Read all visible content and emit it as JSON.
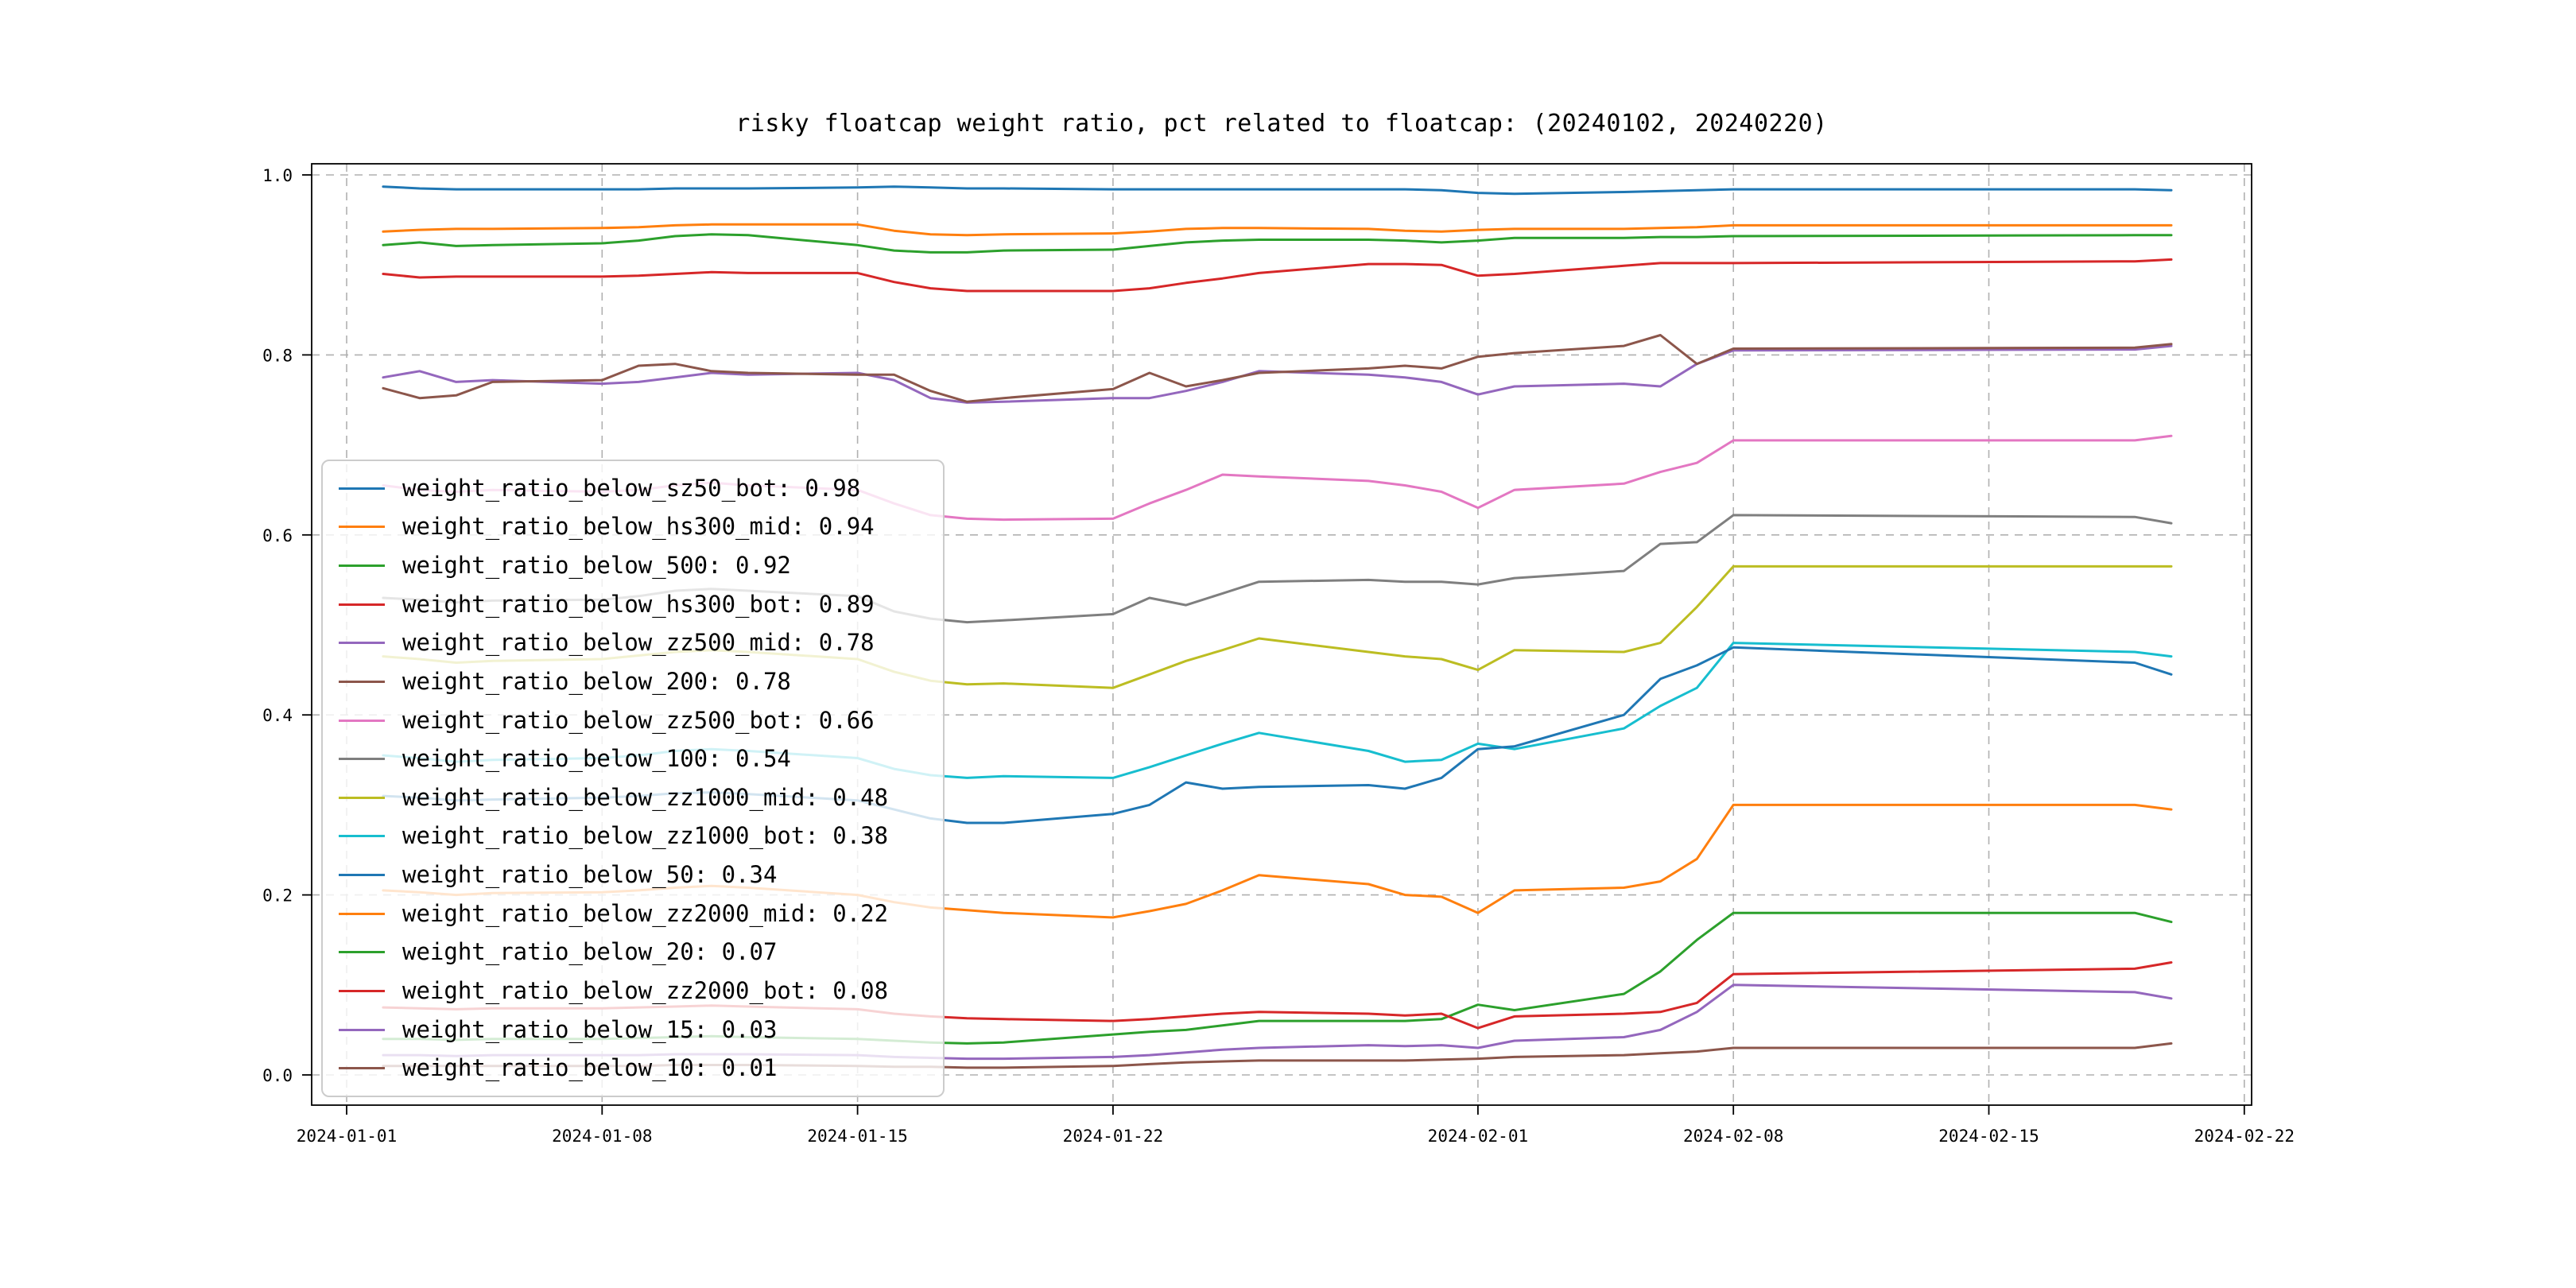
{
  "chart_data": {
    "type": "line",
    "title": "risky floatcap weight ratio, pct related to floatcap: (20240102, 20240220)",
    "xlabel": "",
    "ylabel": "",
    "grid": "dashed",
    "legend_position": "center-left",
    "ylim": [
      0.0,
      1.0
    ],
    "x_ticks": [
      "2024-01-01",
      "2024-01-08",
      "2024-01-15",
      "2024-01-22",
      "2024-02-01",
      "2024-02-08",
      "2024-02-15",
      "2024-02-22"
    ],
    "y_ticks": [
      0.0,
      0.2,
      0.4,
      0.6,
      0.8,
      1.0
    ],
    "y_tick_labels": [
      "0.0",
      "0.2",
      "0.4",
      "0.6",
      "0.8",
      "1.0"
    ],
    "dates": [
      "2024-01-02",
      "2024-01-03",
      "2024-01-04",
      "2024-01-05",
      "2024-01-08",
      "2024-01-09",
      "2024-01-10",
      "2024-01-11",
      "2024-01-12",
      "2024-01-15",
      "2024-01-16",
      "2024-01-17",
      "2024-01-18",
      "2024-01-19",
      "2024-01-22",
      "2024-01-23",
      "2024-01-24",
      "2024-01-25",
      "2024-01-26",
      "2024-01-29",
      "2024-01-30",
      "2024-01-31",
      "2024-02-01",
      "2024-02-02",
      "2024-02-05",
      "2024-02-06",
      "2024-02-07",
      "2024-02-08",
      "2024-02-19",
      "2024-02-20"
    ],
    "series": [
      {
        "name": "weight_ratio_below_sz50_bot",
        "label": "weight_ratio_below_sz50_bot: 0.98",
        "color": "#1f77b4",
        "values": [
          0.987,
          0.985,
          0.984,
          0.984,
          0.984,
          0.984,
          0.985,
          0.985,
          0.985,
          0.986,
          0.987,
          0.986,
          0.985,
          0.985,
          0.984,
          0.984,
          0.984,
          0.984,
          0.984,
          0.984,
          0.984,
          0.983,
          0.98,
          0.979,
          0.981,
          0.982,
          0.983,
          0.984,
          0.984,
          0.983
        ]
      },
      {
        "name": "weight_ratio_below_hs300_mid",
        "label": "weight_ratio_below_hs300_mid: 0.94",
        "color": "#ff7f0e",
        "values": [
          0.937,
          0.939,
          0.94,
          0.94,
          0.941,
          0.942,
          0.944,
          0.945,
          0.945,
          0.945,
          0.938,
          0.934,
          0.933,
          0.934,
          0.935,
          0.937,
          0.94,
          0.941,
          0.941,
          0.94,
          0.938,
          0.937,
          0.939,
          0.94,
          0.94,
          0.941,
          0.942,
          0.944,
          0.944,
          0.944
        ]
      },
      {
        "name": "weight_ratio_below_500",
        "label": "weight_ratio_below_500: 0.92",
        "color": "#2ca02c",
        "values": [
          0.922,
          0.925,
          0.921,
          0.922,
          0.924,
          0.927,
          0.932,
          0.934,
          0.933,
          0.922,
          0.916,
          0.914,
          0.914,
          0.916,
          0.917,
          0.921,
          0.925,
          0.927,
          0.928,
          0.928,
          0.927,
          0.925,
          0.927,
          0.93,
          0.93,
          0.931,
          0.931,
          0.932,
          0.933,
          0.933
        ]
      },
      {
        "name": "weight_ratio_below_hs300_bot",
        "label": "weight_ratio_below_hs300_bot: 0.89",
        "color": "#d62728",
        "values": [
          0.89,
          0.886,
          0.887,
          0.887,
          0.887,
          0.888,
          0.89,
          0.892,
          0.891,
          0.891,
          0.881,
          0.874,
          0.871,
          0.871,
          0.871,
          0.874,
          0.88,
          0.885,
          0.891,
          0.901,
          0.901,
          0.9,
          0.888,
          0.89,
          0.899,
          0.902,
          0.902,
          0.902,
          0.904,
          0.906
        ]
      },
      {
        "name": "weight_ratio_below_zz500_mid",
        "label": "weight_ratio_below_zz500_mid: 0.78",
        "color": "#9467bd",
        "values": [
          0.775,
          0.782,
          0.77,
          0.772,
          0.768,
          0.77,
          0.775,
          0.78,
          0.778,
          0.78,
          0.772,
          0.752,
          0.747,
          0.748,
          0.752,
          0.752,
          0.76,
          0.77,
          0.782,
          0.778,
          0.775,
          0.77,
          0.756,
          0.765,
          0.768,
          0.765,
          0.79,
          0.805,
          0.806,
          0.81
        ]
      },
      {
        "name": "weight_ratio_below_200",
        "label": "weight_ratio_below_200: 0.78",
        "color": "#8c564b",
        "values": [
          0.763,
          0.752,
          0.755,
          0.77,
          0.772,
          0.788,
          0.79,
          0.782,
          0.78,
          0.778,
          0.778,
          0.76,
          0.748,
          0.752,
          0.762,
          0.78,
          0.765,
          0.772,
          0.78,
          0.785,
          0.788,
          0.785,
          0.798,
          0.802,
          0.81,
          0.822,
          0.79,
          0.807,
          0.808,
          0.812
        ]
      },
      {
        "name": "weight_ratio_below_zz500_bot",
        "label": "weight_ratio_below_zz500_bot: 0.66",
        "color": "#e377c2",
        "values": [
          0.655,
          0.65,
          0.648,
          0.65,
          0.648,
          0.65,
          0.655,
          0.658,
          0.655,
          0.65,
          0.635,
          0.622,
          0.618,
          0.617,
          0.618,
          0.635,
          0.65,
          0.667,
          0.665,
          0.66,
          0.655,
          0.648,
          0.63,
          0.65,
          0.657,
          0.67,
          0.68,
          0.705,
          0.705,
          0.71
        ]
      },
      {
        "name": "weight_ratio_below_100",
        "label": "weight_ratio_below_100: 0.54",
        "color": "#7f7f7f",
        "values": [
          0.53,
          0.528,
          0.525,
          0.527,
          0.528,
          0.532,
          0.538,
          0.54,
          0.538,
          0.532,
          0.515,
          0.507,
          0.503,
          0.505,
          0.512,
          0.53,
          0.522,
          0.535,
          0.548,
          0.55,
          0.548,
          0.548,
          0.545,
          0.552,
          0.56,
          0.59,
          0.592,
          0.622,
          0.62,
          0.613
        ]
      },
      {
        "name": "weight_ratio_below_zz1000_mid",
        "label": "weight_ratio_below_zz1000_mid: 0.48",
        "color": "#bcbd22",
        "values": [
          0.465,
          0.462,
          0.458,
          0.46,
          0.462,
          0.466,
          0.47,
          0.472,
          0.47,
          0.462,
          0.448,
          0.438,
          0.434,
          0.435,
          0.43,
          0.445,
          0.46,
          0.472,
          0.485,
          0.47,
          0.465,
          0.462,
          0.45,
          0.472,
          0.47,
          0.48,
          0.52,
          0.565,
          0.565,
          0.565
        ]
      },
      {
        "name": "weight_ratio_below_zz1000_bot",
        "label": "weight_ratio_below_zz1000_bot: 0.38",
        "color": "#17becf",
        "values": [
          0.355,
          0.352,
          0.348,
          0.35,
          0.352,
          0.355,
          0.36,
          0.362,
          0.36,
          0.352,
          0.34,
          0.333,
          0.33,
          0.332,
          0.33,
          0.342,
          0.355,
          0.368,
          0.38,
          0.36,
          0.348,
          0.35,
          0.368,
          0.362,
          0.385,
          0.41,
          0.43,
          0.48,
          0.47,
          0.465
        ]
      },
      {
        "name": "weight_ratio_below_50",
        "label": "weight_ratio_below_50: 0.34",
        "color": "#1f77b4",
        "values": [
          0.31,
          0.308,
          0.305,
          0.306,
          0.308,
          0.31,
          0.313,
          0.314,
          0.312,
          0.305,
          0.295,
          0.285,
          0.28,
          0.28,
          0.29,
          0.3,
          0.325,
          0.318,
          0.32,
          0.322,
          0.318,
          0.33,
          0.362,
          0.365,
          0.4,
          0.44,
          0.455,
          0.475,
          0.458,
          0.445
        ]
      },
      {
        "name": "weight_ratio_below_zz2000_mid",
        "label": "weight_ratio_below_zz2000_mid: 0.22",
        "color": "#ff7f0e",
        "values": [
          0.205,
          0.203,
          0.2,
          0.202,
          0.203,
          0.205,
          0.208,
          0.21,
          0.208,
          0.2,
          0.192,
          0.186,
          0.183,
          0.18,
          0.175,
          0.182,
          0.19,
          0.205,
          0.222,
          0.212,
          0.2,
          0.198,
          0.18,
          0.205,
          0.208,
          0.215,
          0.24,
          0.3,
          0.3,
          0.295
        ]
      },
      {
        "name": "weight_ratio_below_20",
        "label": "weight_ratio_below_20: 0.07",
        "color": "#2ca02c",
        "values": [
          0.04,
          0.04,
          0.039,
          0.04,
          0.04,
          0.041,
          0.042,
          0.043,
          0.042,
          0.04,
          0.038,
          0.036,
          0.035,
          0.036,
          0.045,
          0.048,
          0.05,
          0.055,
          0.06,
          0.06,
          0.06,
          0.062,
          0.078,
          0.072,
          0.09,
          0.115,
          0.15,
          0.18,
          0.18,
          0.17
        ]
      },
      {
        "name": "weight_ratio_below_zz2000_bot",
        "label": "weight_ratio_below_zz2000_bot: 0.08",
        "color": "#d62728",
        "values": [
          0.075,
          0.074,
          0.073,
          0.074,
          0.074,
          0.075,
          0.076,
          0.077,
          0.076,
          0.073,
          0.068,
          0.065,
          0.063,
          0.062,
          0.06,
          0.062,
          0.065,
          0.068,
          0.07,
          0.068,
          0.066,
          0.068,
          0.052,
          0.065,
          0.068,
          0.07,
          0.08,
          0.112,
          0.118,
          0.125
        ]
      },
      {
        "name": "weight_ratio_below_15",
        "label": "weight_ratio_below_15: 0.03",
        "color": "#9467bd",
        "values": [
          0.022,
          0.022,
          0.021,
          0.022,
          0.022,
          0.022,
          0.023,
          0.023,
          0.023,
          0.022,
          0.02,
          0.019,
          0.018,
          0.018,
          0.02,
          0.022,
          0.025,
          0.028,
          0.03,
          0.033,
          0.032,
          0.033,
          0.03,
          0.038,
          0.042,
          0.05,
          0.07,
          0.1,
          0.092,
          0.085
        ]
      },
      {
        "name": "weight_ratio_below_10",
        "label": "weight_ratio_below_10: 0.01",
        "color": "#8c564b",
        "values": [
          0.01,
          0.01,
          0.01,
          0.01,
          0.01,
          0.01,
          0.011,
          0.011,
          0.011,
          0.01,
          0.009,
          0.009,
          0.008,
          0.008,
          0.01,
          0.012,
          0.014,
          0.015,
          0.016,
          0.016,
          0.016,
          0.017,
          0.018,
          0.02,
          0.022,
          0.024,
          0.026,
          0.03,
          0.03,
          0.035
        ]
      }
    ]
  }
}
